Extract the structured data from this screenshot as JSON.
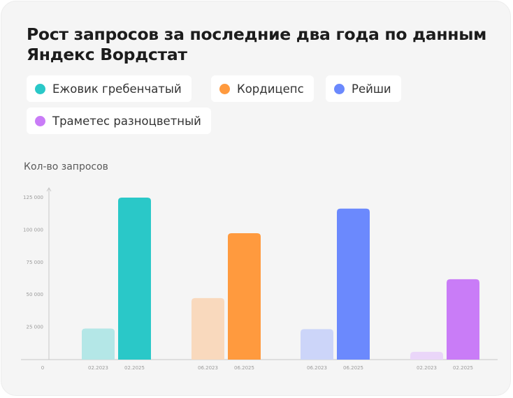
{
  "chart_data": {
    "type": "bar",
    "title": "Рост запросов за последние два года по данным Яндекс Вордстат",
    "ylabel": "Кол-во запросов",
    "xlabel": "",
    "ylim": [
      0,
      125000
    ],
    "y_ticks": [
      {
        "value": 0,
        "label": "0"
      },
      {
        "value": 25000,
        "label": "25 000"
      },
      {
        "value": 50000,
        "label": "50 000"
      },
      {
        "value": 75000,
        "label": "75 000"
      },
      {
        "value": 100000,
        "label": "100 000"
      },
      {
        "value": 125000,
        "label": "125 000"
      }
    ],
    "grid": false,
    "legend_position": "top",
    "series": [
      {
        "name": "Ежовик гребенчатый",
        "color": "#2ac8c8",
        "light_color": "#b4e7e7",
        "bars": [
          {
            "date": "02.2023",
            "value": 24000
          },
          {
            "date": "02.2025",
            "value": 125000
          }
        ]
      },
      {
        "name": "Кордицепс",
        "color": "#ff9a3e",
        "light_color": "#f9d9bd",
        "bars": [
          {
            "date": "06.2023",
            "value": 47500
          },
          {
            "date": "06.2025",
            "value": 97500
          }
        ]
      },
      {
        "name": "Рейши",
        "color": "#6b89fd",
        "light_color": "#ccd5f9",
        "bars": [
          {
            "date": "06.2023",
            "value": 23500
          },
          {
            "date": "06.2025",
            "value": 116500
          }
        ]
      },
      {
        "name": "Траметес разноцветный",
        "color": "#c97cf7",
        "light_color": "#ead6f9",
        "bars": [
          {
            "date": "02.2023",
            "value": 6000
          },
          {
            "date": "02.2025",
            "value": 62000
          }
        ]
      }
    ]
  }
}
